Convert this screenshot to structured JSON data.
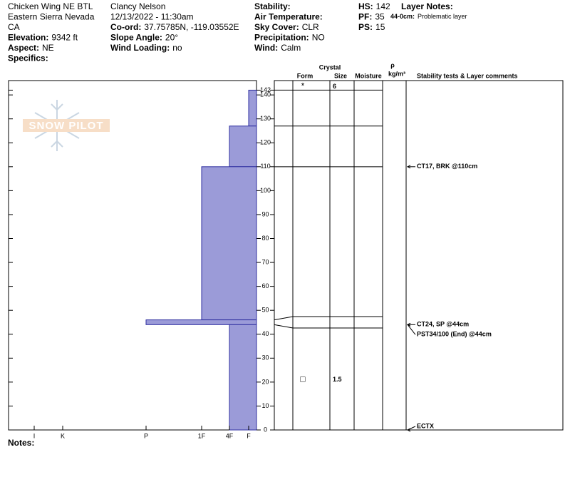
{
  "header": [
    [
      {
        "value": "Chicken Wing NE BTL"
      },
      {
        "value": "Eastern Sierra Nevada"
      },
      {
        "value": "CA"
      },
      {
        "label": "Elevation:",
        "value": "9342 ft"
      },
      {
        "label": "Aspect:",
        "value": "NE"
      },
      {
        "label": "Specifics:"
      }
    ],
    [
      {
        "value": "Clancy Nelson"
      },
      {
        "value": "12/13/2022 - 11:30am"
      },
      {
        "label": "Co-ord:",
        "value": "37.75785N, -119.03552E"
      },
      {
        "label": "Slope Angle:",
        "value": "20°"
      },
      {
        "label": "Wind Loading:",
        "value": "no"
      }
    ],
    [
      {
        "label": "Stability:"
      },
      {
        "label": "Air Temperature:"
      },
      {
        "label": "Sky Cover:",
        "value": "CLR"
      },
      {
        "label": "Precipitation:",
        "value": "NO"
      },
      {
        "label": "Wind:",
        "value": "Calm"
      }
    ],
    [
      {
        "label": "HS:",
        "value": "142"
      },
      {
        "label": "PF:",
        "value": "35"
      },
      {
        "label": "PS:",
        "value": "15"
      }
    ],
    [
      {
        "label": "Layer Notes:"
      }
    ]
  ],
  "layer_notes": [
    {
      "label": "44-0cm:",
      "value": "Problematic layer"
    }
  ],
  "logo": "SNOW PILOT",
  "notes": "Notes:",
  "chart_data": {
    "type": "snow-profile",
    "ylim": [
      0,
      146
    ],
    "yticks": [
      0,
      10,
      20,
      30,
      40,
      50,
      60,
      70,
      80,
      90,
      100,
      110,
      120,
      130,
      140,
      142
    ],
    "xticks": [
      {
        "value": 1,
        "label": "I"
      },
      {
        "value": 2,
        "label": "K"
      },
      {
        "value": 3,
        "label": "P"
      },
      {
        "value": 4,
        "label": "1F"
      },
      {
        "value": 5,
        "label": "4F"
      },
      {
        "value": 6,
        "label": "F"
      }
    ],
    "color": "#9b9bd8",
    "layers": [
      {
        "top": 142,
        "bottom": 127,
        "hardness": 6
      },
      {
        "top": 127,
        "bottom": 110,
        "hardness": 5
      },
      {
        "top": 110,
        "bottom": 46,
        "hardness": 4
      },
      {
        "top": 46,
        "bottom": 44,
        "hardness": 3
      },
      {
        "top": 44,
        "bottom": 0,
        "hardness": 5
      }
    ],
    "columns": {
      "crystal": "Crystal",
      "form": "Form",
      "size": "Size",
      "moisture": "Moisture",
      "rho": "ρ",
      "density": "kg/m³",
      "tests": "Stability tests & Layer comments"
    },
    "grains": [
      {
        "depth": 142,
        "form": "*",
        "size": 6
      },
      {
        "depth": 21,
        "form": "□",
        "size": 1.5
      }
    ],
    "tests": [
      {
        "depth": 110,
        "text": "CT17, BRK @110cm"
      },
      {
        "depth": 44,
        "text": "CT24, SP @44cm"
      },
      {
        "depth": 44,
        "text": "PST34/100 (End) @44cm"
      },
      {
        "depth": 0,
        "text": "ECTX"
      }
    ]
  }
}
